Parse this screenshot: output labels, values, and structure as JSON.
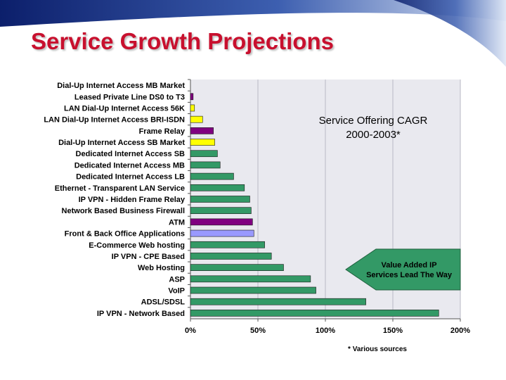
{
  "slide": {
    "title": "Service Growth Projections",
    "footnote": "* Various sources"
  },
  "colors": {
    "title": "#c8102e",
    "header_blue_dark": "#0c1f6b",
    "header_blue_light": "#dde6f5",
    "green": "#339966",
    "purple": "#800080",
    "yellow": "#ffff00",
    "lavender": "#9999ff",
    "callout_fill": "#339966"
  },
  "chart_data": {
    "type": "bar",
    "orientation": "horizontal",
    "title": "Service Offering CAGR\n2000-2003*",
    "xlim": [
      0,
      2
    ],
    "xticks": [
      0,
      0.5,
      1,
      1.5,
      2
    ],
    "xtick_labels": [
      "0%",
      "50%",
      "100%",
      "150%",
      "200%"
    ],
    "grid": "vertical",
    "categories": [
      "Dial-Up Internet Access MB Market",
      "Leased Private Line DS0 to T3",
      "LAN Dial-Up Internet Access 56K",
      "LAN Dial-Up Internet Access BRI-ISDN",
      "Frame Relay",
      "Dial-Up Internet Access SB Market",
      "Dedicated Internet Access SB",
      "Dedicated Internet Access MB",
      "Dedicated Internet Access LB",
      "Ethernet - Transparent LAN Service",
      "IP VPN - Hidden Frame Relay",
      "Network Based Business Firewall",
      "ATM",
      "Front & Back Office Applications",
      "E-Commerce Web hosting",
      "IP VPN - CPE Based",
      "Web Hosting",
      "ASP",
      "VoIP",
      "ADSL/SDSL",
      "IP VPN - Network Based"
    ],
    "values": [
      0,
      0.02,
      0.03,
      0.09,
      0.17,
      0.18,
      0.2,
      0.22,
      0.32,
      0.4,
      0.44,
      0.45,
      0.46,
      0.47,
      0.55,
      0.6,
      0.69,
      0.89,
      0.93,
      1.3,
      1.84
    ],
    "bar_colors": [
      "#339966",
      "#800080",
      "#ffff00",
      "#ffff00",
      "#800080",
      "#ffff00",
      "#339966",
      "#339966",
      "#339966",
      "#339966",
      "#339966",
      "#339966",
      "#800080",
      "#9999ff",
      "#339966",
      "#339966",
      "#339966",
      "#339966",
      "#339966",
      "#339966",
      "#339966"
    ],
    "annotation": "Value Added IP\nServices Lead The Way"
  }
}
